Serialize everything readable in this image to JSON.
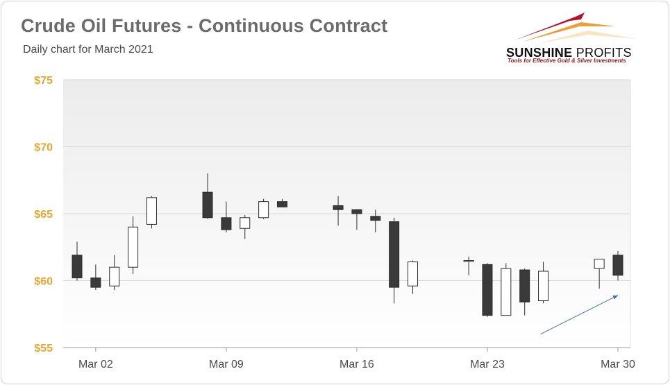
{
  "header": {
    "title": "Crude Oil Futures - Continuous Contract",
    "subtitle": "Daily chart for March 2021"
  },
  "logo": {
    "name_bold": "SUNSHINE",
    "name_light": " PROFITS",
    "tagline": "Tools for Effective Gold & Silver Investments",
    "colors": {
      "swoosh_red": "#b3122a",
      "swoosh_orange": "#e8901c",
      "tagline": "#8b1a1a"
    }
  },
  "colors": {
    "bear_fill": "#3a3a3a",
    "bull_fill": "#ffffff",
    "candle_stroke": "#2b2b2b",
    "ytick": "#e3a72f",
    "grid": "#d9d9d9",
    "arrow": "#4a6ea8"
  },
  "chart_data": {
    "type": "candlestick",
    "title": "Crude Oil Futures - Continuous Contract",
    "subtitle": "Daily chart for March 2021",
    "xlabel": "",
    "ylabel": "",
    "ylim": [
      55,
      75
    ],
    "yticks": [
      55,
      60,
      65,
      70,
      75
    ],
    "ytick_labels": [
      "$55",
      "$60",
      "$65",
      "$70",
      "$75"
    ],
    "x_ticks": [
      {
        "date": "2021-03-02",
        "label": "Mar 02"
      },
      {
        "date": "2021-03-09",
        "label": "Mar 09"
      },
      {
        "date": "2021-03-16",
        "label": "Mar 16"
      },
      {
        "date": "2021-03-23",
        "label": "Mar 23"
      },
      {
        "date": "2021-03-30",
        "label": "Mar 30"
      }
    ],
    "grid": "horizontal",
    "candles": [
      {
        "date": "2021-03-01",
        "open": 61.9,
        "high": 62.9,
        "low": 60.0,
        "close": 60.2
      },
      {
        "date": "2021-03-02",
        "open": 60.2,
        "high": 61.2,
        "low": 59.3,
        "close": 59.5
      },
      {
        "date": "2021-03-03",
        "open": 59.6,
        "high": 61.9,
        "low": 59.3,
        "close": 61.0
      },
      {
        "date": "2021-03-04",
        "open": 61.0,
        "high": 64.8,
        "low": 60.5,
        "close": 64.0
      },
      {
        "date": "2021-03-05",
        "open": 64.2,
        "high": 66.3,
        "low": 63.9,
        "close": 66.2
      },
      {
        "date": "2021-03-08",
        "open": 66.6,
        "high": 68.0,
        "low": 64.6,
        "close": 64.7
      },
      {
        "date": "2021-03-09",
        "open": 64.7,
        "high": 65.9,
        "low": 63.6,
        "close": 63.8
      },
      {
        "date": "2021-03-10",
        "open": 63.9,
        "high": 64.9,
        "low": 63.1,
        "close": 64.7
      },
      {
        "date": "2021-03-11",
        "open": 64.7,
        "high": 66.1,
        "low": 64.6,
        "close": 65.9
      },
      {
        "date": "2021-03-12",
        "open": 65.9,
        "high": 66.1,
        "low": 65.5,
        "close": 65.5
      },
      {
        "date": "2021-03-15",
        "open": 65.6,
        "high": 66.3,
        "low": 64.1,
        "close": 65.3
      },
      {
        "date": "2021-03-16",
        "open": 65.3,
        "high": 65.3,
        "low": 63.8,
        "close": 65.0
      },
      {
        "date": "2021-03-17",
        "open": 64.8,
        "high": 65.3,
        "low": 63.6,
        "close": 64.5
      },
      {
        "date": "2021-03-18",
        "open": 64.4,
        "high": 64.7,
        "low": 58.3,
        "close": 59.5
      },
      {
        "date": "2021-03-19",
        "open": 59.6,
        "high": 61.5,
        "low": 59.0,
        "close": 61.4
      },
      {
        "date": "2021-03-22",
        "open": 61.5,
        "high": 61.8,
        "low": 60.4,
        "close": 61.5
      },
      {
        "date": "2021-03-23",
        "open": 61.2,
        "high": 61.3,
        "low": 57.3,
        "close": 57.4
      },
      {
        "date": "2021-03-24",
        "open": 57.4,
        "high": 61.3,
        "low": 57.4,
        "close": 60.9
      },
      {
        "date": "2021-03-25",
        "open": 60.8,
        "high": 60.9,
        "low": 57.4,
        "close": 58.4
      },
      {
        "date": "2021-03-26",
        "open": 58.5,
        "high": 61.4,
        "low": 58.3,
        "close": 60.7
      },
      {
        "date": "2021-03-29",
        "open": 60.9,
        "high": 61.6,
        "low": 59.4,
        "close": 61.6
      },
      {
        "date": "2021-03-30",
        "open": 61.9,
        "high": 62.2,
        "low": 60.0,
        "close": 60.4
      }
    ],
    "annotations": [
      {
        "type": "arrow",
        "color": "#4a6ea8",
        "from": {
          "date": "2021-03-26",
          "y": 56.0
        },
        "to": {
          "date": "2021-03-30",
          "y": 58.9
        }
      }
    ]
  }
}
